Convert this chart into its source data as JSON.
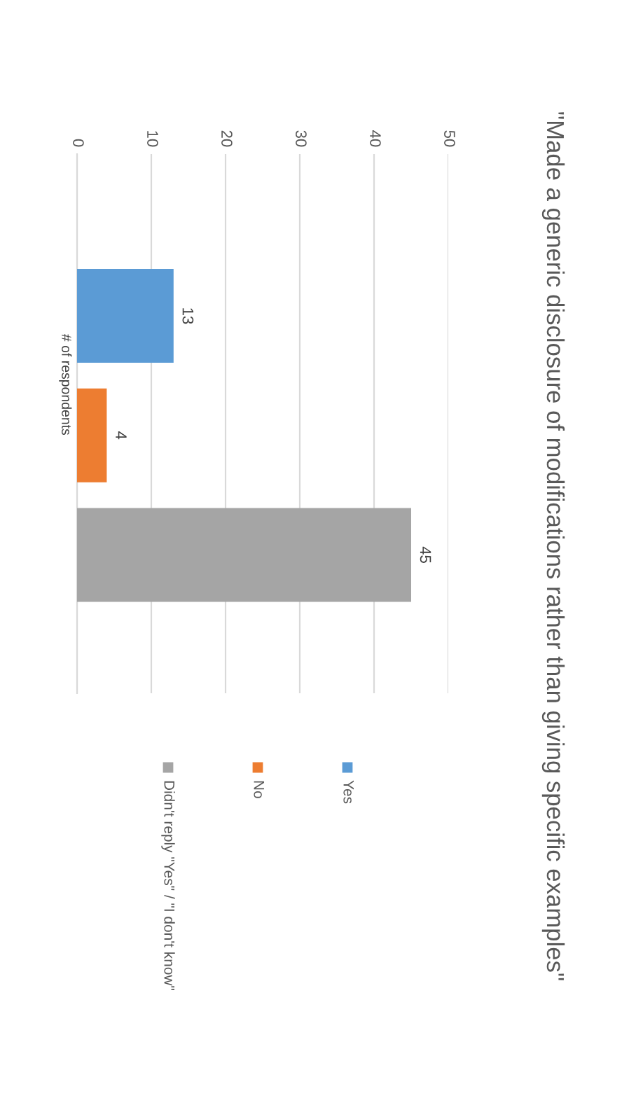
{
  "chart_data": {
    "type": "bar",
    "orientation": "horizontal",
    "title": "\"Made a generic disclosure of modifications rather than giving specific examples\"",
    "categories": [
      "# of respondents"
    ],
    "series": [
      {
        "name": "Yes",
        "color": "#5b9bd5",
        "values": [
          13
        ]
      },
      {
        "name": "No",
        "color": "#ed7d31",
        "values": [
          4
        ]
      },
      {
        "name": "Didn't reply \"Yes\" / \"I don't know\"",
        "color": "#a5a5a5",
        "values": [
          45
        ]
      }
    ],
    "xlim": [
      0,
      50
    ],
    "xticks": [
      0,
      10,
      20,
      30,
      40,
      50
    ],
    "grid": "x",
    "legend": "bottom",
    "data_labels": true
  }
}
